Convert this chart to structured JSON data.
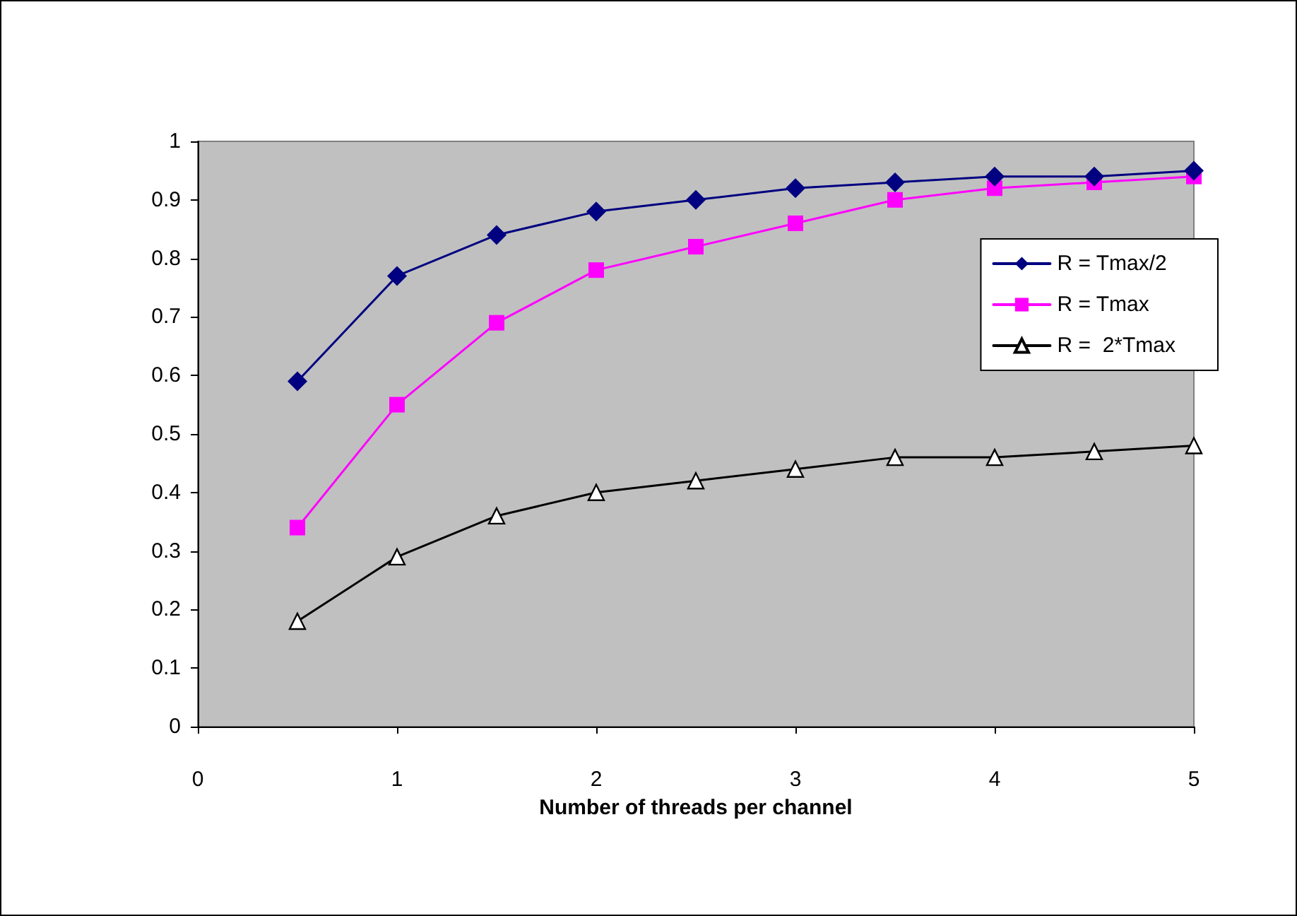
{
  "chart_data": {
    "type": "line",
    "xlabel": "Number of threads per channel",
    "x": [
      0.5,
      1,
      1.5,
      2,
      2.5,
      3,
      3.5,
      4,
      4.5,
      5
    ],
    "series": [
      {
        "name": "R = Tmax/2",
        "color": "#000080",
        "marker": "diamond",
        "values": [
          0.59,
          0.77,
          0.84,
          0.88,
          0.9,
          0.92,
          0.93,
          0.94,
          0.94,
          0.95
        ]
      },
      {
        "name": "R = Tmax",
        "color": "#ff00ff",
        "marker": "square",
        "values": [
          0.34,
          0.55,
          0.69,
          0.78,
          0.82,
          0.86,
          0.9,
          0.92,
          0.93,
          0.94
        ]
      },
      {
        "name": "R =  2*Tmax",
        "color": "#000000",
        "marker": "triangle",
        "values": [
          0.18,
          0.29,
          0.36,
          0.4,
          0.42,
          0.44,
          0.46,
          0.46,
          0.47,
          0.48
        ]
      }
    ],
    "xlim": [
      0,
      5
    ],
    "xticks": [
      0,
      1,
      2,
      3,
      4,
      5
    ],
    "ylim": [
      0,
      1
    ],
    "yticks": [
      0,
      0.1,
      0.2,
      0.3,
      0.4,
      0.5,
      0.6,
      0.7,
      0.8,
      0.9,
      1
    ],
    "grid": false,
    "legend": "right",
    "line_style": "solid"
  }
}
